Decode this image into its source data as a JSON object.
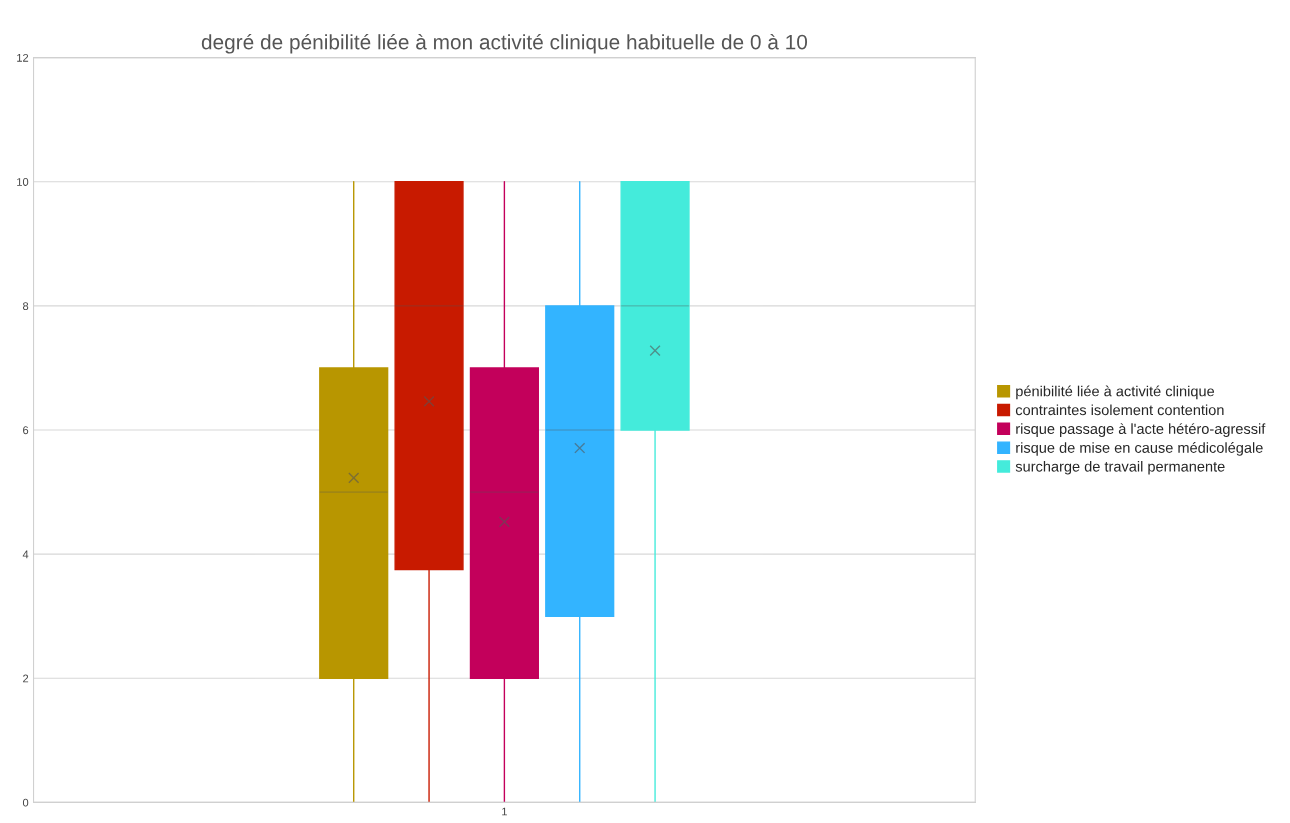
{
  "chart_data": {
    "type": "box",
    "title": "degré de pénibilité liée à mon activité clinique habituelle de 0 à 10",
    "categories": [
      "1"
    ],
    "ylim": [
      0,
      12
    ],
    "yticks": [
      0,
      2,
      4,
      6,
      8,
      10,
      12
    ],
    "grid": "y",
    "legend": "right",
    "series": [
      {
        "name": "pénibilité liée à activité clinique",
        "color": "#b89600",
        "boxes": [
          {
            "low": 0,
            "q1": 2,
            "median": 5,
            "q3": 7,
            "high": 10,
            "mean": 5.23
          }
        ]
      },
      {
        "name": "contraintes isolement contention",
        "color": "#c81a00",
        "boxes": [
          {
            "low": 0,
            "q1": 3.75,
            "median": 8,
            "q3": 10,
            "high": 10,
            "mean": 6.46
          }
        ]
      },
      {
        "name": "risque passage à l'acte hétéro-agressif",
        "color": "#c3005b",
        "boxes": [
          {
            "low": 0,
            "q1": 2,
            "median": 5,
            "q3": 7,
            "high": 10,
            "mean": 4.52
          }
        ]
      },
      {
        "name": "risque de mise en cause médicolégale",
        "color": "#33b4ff",
        "boxes": [
          {
            "low": 0,
            "q1": 3,
            "median": 6,
            "q3": 8,
            "high": 10,
            "mean": 5.71
          }
        ]
      },
      {
        "name": "surcharge de travail permanente",
        "color": "#44ebdb",
        "boxes": [
          {
            "low": 0,
            "q1": 6,
            "median": 8,
            "q3": 10,
            "high": 10,
            "mean": 7.28
          }
        ]
      }
    ]
  }
}
